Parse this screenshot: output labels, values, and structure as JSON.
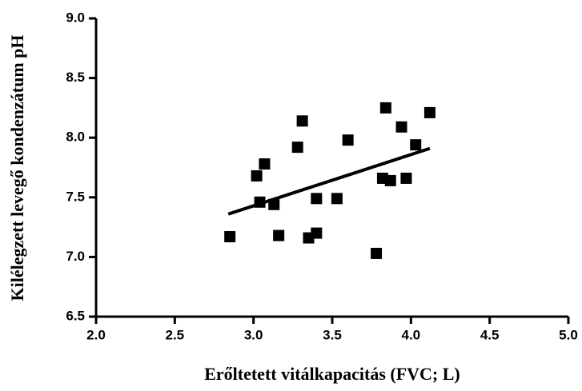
{
  "chart_data": {
    "type": "scatter",
    "x_label": "Erőltetett vitálkapacitás (FVC; L)",
    "y_label": "Kilélegzett levegő kondenzátum pH",
    "x": [
      2.85,
      3.02,
      3.07,
      3.04,
      3.13,
      3.16,
      3.28,
      3.31,
      3.35,
      3.4,
      3.4,
      3.53,
      3.6,
      3.78,
      3.84,
      3.82,
      3.87,
      3.94,
      3.97,
      4.03,
      4.12
    ],
    "values": [
      7.17,
      7.68,
      7.78,
      7.46,
      7.44,
      7.18,
      7.92,
      8.14,
      7.16,
      7.2,
      7.49,
      7.49,
      7.98,
      7.03,
      8.25,
      7.66,
      7.64,
      8.09,
      7.66,
      7.94,
      8.21
    ],
    "color": "#000000",
    "trendline": {
      "x": [
        2.84,
        4.12
      ],
      "y": [
        7.36,
        7.91
      ]
    },
    "xlim": [
      2.0,
      5.0
    ],
    "xticks": [
      {
        "value": 2.0,
        "label": "2.0"
      },
      2.5,
      {
        "value": 3.0,
        "label": "3.0"
      },
      3.5,
      {
        "value": 4.0,
        "label": "4.0"
      },
      4.5,
      {
        "value": 5.0,
        "label": "5.0"
      }
    ],
    "ylim": [
      6.5,
      9.0
    ],
    "yticks": [
      6.5,
      {
        "value": 7.0,
        "label": "7.0"
      },
      7.5,
      {
        "value": 8.0,
        "label": "8.0"
      },
      8.5,
      {
        "value": 9.0,
        "label": "9.0"
      }
    ]
  }
}
